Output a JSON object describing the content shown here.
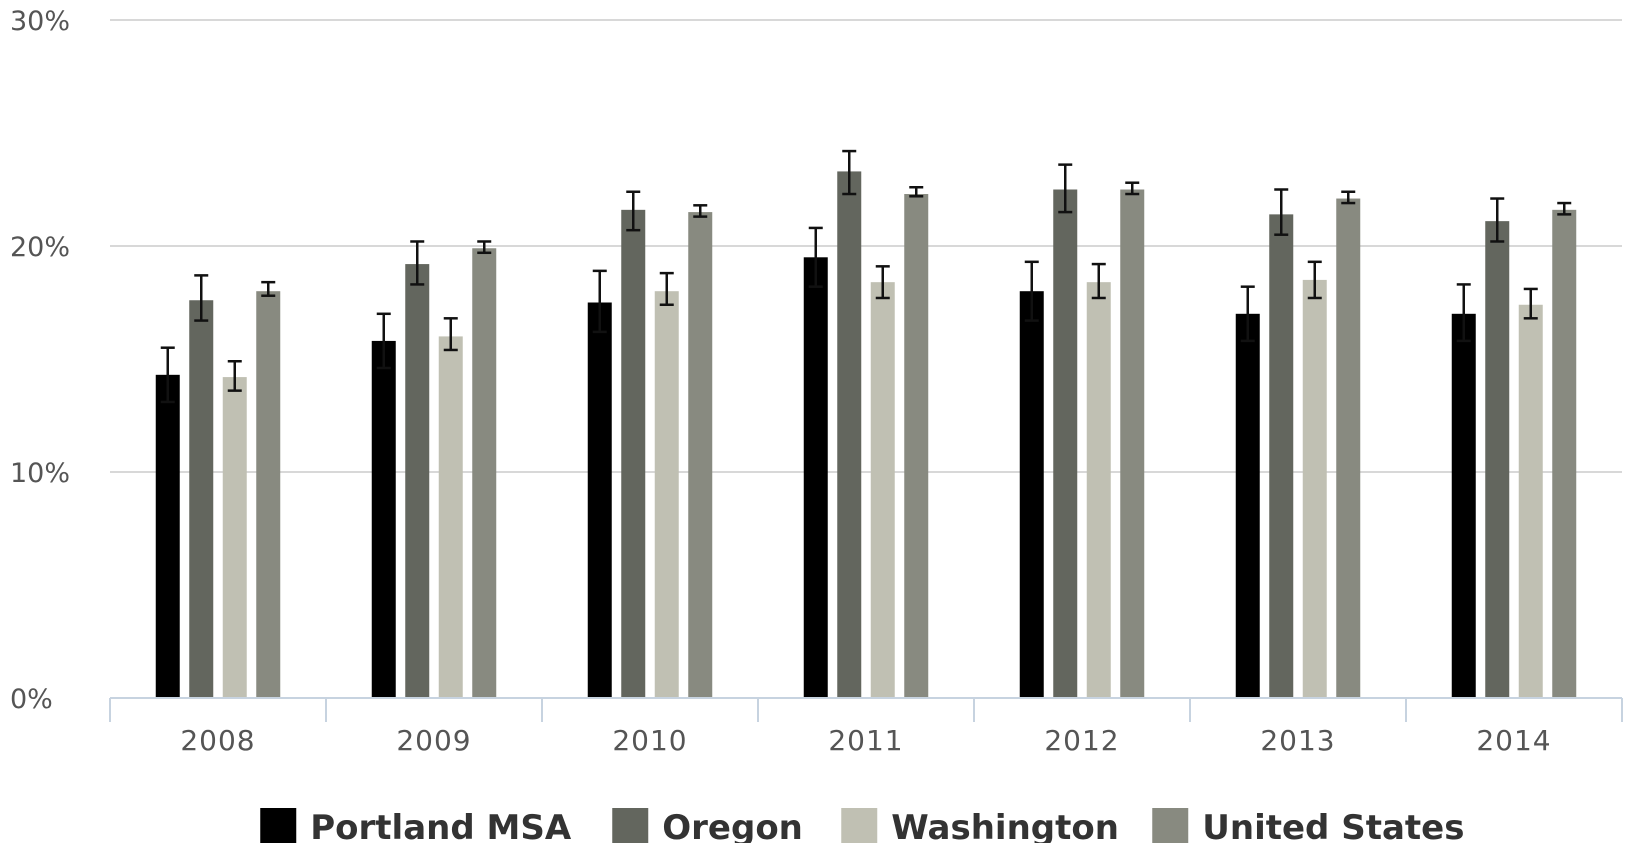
{
  "chart_data": {
    "type": "bar",
    "title": "",
    "xlabel": "",
    "ylabel": "",
    "ylim": [
      0,
      30
    ],
    "y_ticks": [
      "0%",
      "10%",
      "20%",
      "30%"
    ],
    "y_tick_values": [
      0,
      10,
      20,
      30
    ],
    "grid": true,
    "legend_position": "bottom",
    "categories": [
      "2008",
      "2009",
      "2010",
      "2011",
      "2012",
      "2013",
      "2014"
    ],
    "series": [
      {
        "name": "Portland MSA",
        "color": "#000000",
        "values": [
          14.3,
          15.8,
          17.5,
          19.5,
          18.0,
          17.0,
          17.0
        ],
        "error_low": [
          13.1,
          14.6,
          16.2,
          18.2,
          16.7,
          15.8,
          15.8
        ],
        "error_high": [
          15.5,
          17.0,
          18.9,
          20.8,
          19.3,
          18.2,
          18.3
        ]
      },
      {
        "name": "Oregon",
        "color": "#63665e",
        "values": [
          17.6,
          19.2,
          21.6,
          23.3,
          22.5,
          21.4,
          21.1
        ],
        "error_low": [
          16.7,
          18.3,
          20.7,
          22.3,
          21.5,
          20.5,
          20.2
        ],
        "error_high": [
          18.7,
          20.2,
          22.4,
          24.2,
          23.6,
          22.5,
          22.1
        ]
      },
      {
        "name": "Washington",
        "color": "#c0c0b3",
        "values": [
          14.2,
          16.0,
          18.0,
          18.4,
          18.4,
          18.5,
          17.4
        ],
        "error_low": [
          13.6,
          15.4,
          17.4,
          17.7,
          17.7,
          17.7,
          16.8
        ],
        "error_high": [
          14.9,
          16.8,
          18.8,
          19.1,
          19.2,
          19.3,
          18.1
        ]
      },
      {
        "name": "United States",
        "color": "#888a80",
        "values": [
          18.0,
          19.9,
          21.5,
          22.3,
          22.5,
          22.1,
          21.6
        ],
        "error_low": [
          17.8,
          19.7,
          21.3,
          22.2,
          22.3,
          21.9,
          21.4
        ],
        "error_high": [
          18.4,
          20.2,
          21.8,
          22.6,
          22.8,
          22.4,
          21.9
        ]
      }
    ]
  }
}
